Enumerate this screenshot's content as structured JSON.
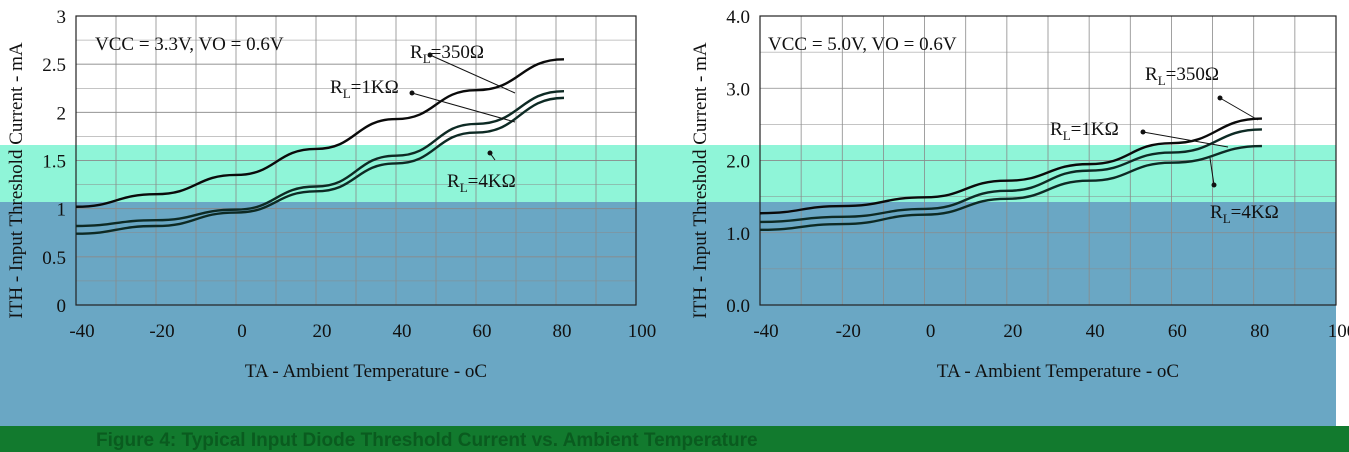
{
  "figure_caption": "Figure 4:    Typical Input Diode Threshold Current vs. Ambient Temperature",
  "colors": {
    "band_teal": "#8ff5d8",
    "band_blue": "#6aa7c4",
    "grid": "#8a8a8a",
    "curve_top": "#0a0a0a",
    "curve_mid": "#0d2a24",
    "caption_bar": "#127a2e"
  },
  "chart_data": [
    {
      "type": "line",
      "annotation": "VCC = 3.3V, VO = 0.6V",
      "xlabel": "TA - Ambient Temperature - oC",
      "ylabel": "ITH - Input Threshold Current - mA",
      "xlim": [
        -40,
        100
      ],
      "ylim": [
        0,
        3
      ],
      "xticks": [
        "-40",
        "-20",
        "0",
        "20",
        "40",
        "60",
        "80",
        "100"
      ],
      "yticks": [
        "0",
        "0.5",
        "1",
        "1.5",
        "2",
        "2.5",
        "3"
      ],
      "grid": true,
      "x": [
        -40,
        -20,
        0,
        20,
        40,
        60,
        82
      ],
      "series": [
        {
          "name": "RL=350Ω",
          "values": [
            1.02,
            1.15,
            1.35,
            1.62,
            1.93,
            2.23,
            2.55
          ]
        },
        {
          "name": "RL=1KΩ",
          "values": [
            0.82,
            0.88,
            0.99,
            1.23,
            1.55,
            1.88,
            2.22
          ]
        },
        {
          "name": "RL=4KΩ",
          "values": [
            0.74,
            0.82,
            0.96,
            1.18,
            1.47,
            1.79,
            2.15
          ]
        }
      ],
      "labels": [
        {
          "text": "RL=350Ω",
          "sub": "L",
          "main": "R",
          "tail": "=350Ω"
        },
        {
          "text": "RL=1KΩ",
          "sub": "L",
          "main": "R",
          "tail": "=1KΩ"
        },
        {
          "text": "RL=4KΩ",
          "sub": "L",
          "main": "R",
          "tail": "=4KΩ"
        }
      ]
    },
    {
      "type": "line",
      "annotation": "VCC = 5.0V, VO = 0.6V",
      "xlabel": "TA - Ambient Temperature - oC",
      "ylabel": "ITH - Input Threshold Current - mA",
      "xlim": [
        -40,
        100
      ],
      "ylim": [
        0,
        4
      ],
      "xticks": [
        "-40",
        "-20",
        "0",
        "20",
        "40",
        "60",
        "80",
        "100"
      ],
      "yticks": [
        "0.0",
        "1.0",
        "2.0",
        "3.0",
        "4.0"
      ],
      "grid": true,
      "x": [
        -40,
        -20,
        0,
        20,
        40,
        60,
        82
      ],
      "series": [
        {
          "name": "RL=350Ω",
          "values": [
            1.27,
            1.37,
            1.49,
            1.72,
            1.95,
            2.24,
            2.58
          ]
        },
        {
          "name": "RL=1KΩ",
          "values": [
            1.15,
            1.22,
            1.33,
            1.58,
            1.86,
            2.11,
            2.43
          ]
        },
        {
          "name": "RL=4KΩ",
          "values": [
            1.04,
            1.12,
            1.25,
            1.47,
            1.72,
            1.97,
            2.2
          ]
        }
      ],
      "labels": [
        {
          "text": "RL=350Ω",
          "sub": "L",
          "main": "R",
          "tail": "=350Ω"
        },
        {
          "text": "RL=1KΩ",
          "sub": "L",
          "main": "R",
          "tail": "=1KΩ"
        },
        {
          "text": "RL=4KΩ",
          "sub": "L",
          "main": "R",
          "tail": "=4KΩ"
        }
      ]
    }
  ]
}
